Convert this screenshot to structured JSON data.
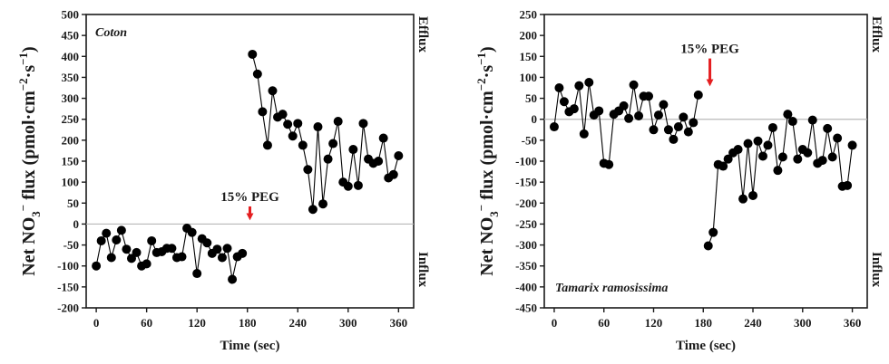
{
  "colors": {
    "series": "#000000",
    "zero_line": "#b8b8b8",
    "arrow": "#e41e20",
    "axis": "#1a1a1a"
  },
  "chart_data": [
    {
      "type": "line",
      "title": "Coton",
      "xlabel": "Time (sec)",
      "ylabel": "Net NO3− flux (pmol·cm−2·s−1)",
      "ylabel_parts": {
        "a": "Net NO",
        "sub": "3",
        "sup1": "−",
        "b": " flux  (pmol·cm",
        "sup2": "−2",
        "c": "·s",
        "sup3": "−1",
        "d": ")"
      },
      "side_top": "Efflux",
      "side_bottom": "Influx",
      "xlim": [
        -12,
        378
      ],
      "ylim": [
        -200,
        500
      ],
      "xticks": [
        0,
        60,
        120,
        180,
        240,
        300,
        360
      ],
      "yticks": [
        -200,
        -150,
        -100,
        -50,
        0,
        50,
        100,
        150,
        200,
        250,
        300,
        350,
        400,
        450,
        500
      ],
      "grid": false,
      "annotation": {
        "text": "15% PEG",
        "x": 183,
        "y": 55,
        "arrow_to_y": 0
      },
      "series": [
        {
          "x": [
            0,
            6,
            12,
            18,
            24,
            30,
            36,
            42,
            48,
            54,
            60,
            66,
            72,
            78,
            84,
            90,
            96,
            102,
            108,
            114,
            120,
            126,
            132,
            138,
            144,
            150,
            156,
            162,
            168,
            174,
            180,
            186,
            192,
            198,
            204,
            210,
            216,
            222,
            228,
            234,
            240,
            246,
            252,
            258,
            264,
            270,
            276,
            282,
            288,
            294,
            300,
            306,
            312,
            318,
            324,
            330,
            336,
            342,
            348,
            354,
            360
          ],
          "y": [
            -100,
            -40,
            -22,
            -80,
            -38,
            -15,
            -60,
            -82,
            -68,
            -100,
            -95,
            -40,
            -68,
            -66,
            -58,
            -58,
            -80,
            -78,
            -10,
            -20,
            -118,
            -35,
            -45,
            -70,
            -60,
            -80,
            -58,
            -132,
            -78,
            -70,
            null,
            405,
            358,
            268,
            188,
            318,
            255,
            262,
            238,
            210,
            240,
            188,
            130,
            35,
            232,
            48,
            155,
            192,
            245,
            100,
            90,
            178,
            92,
            240,
            155,
            145,
            150,
            205,
            110,
            118,
            163
          ]
        }
      ]
    },
    {
      "type": "line",
      "title": "Tamarix ramosissima",
      "xlabel": "Time (sec)",
      "ylabel": "Net NO3− flux (pmol·cm−2·s−1)",
      "ylabel_parts": {
        "a": "Net NO",
        "sub": "3",
        "sup1": "−",
        "b": " flux  (pmol·cm",
        "sup2": "−2",
        "c": "·s",
        "sup3": "−1",
        "d": ")"
      },
      "side_top": "Efflux",
      "side_bottom": "Influx",
      "xlim": [
        -12,
        378
      ],
      "ylim": [
        -450,
        250
      ],
      "xticks": [
        0,
        60,
        120,
        180,
        240,
        300,
        360
      ],
      "yticks": [
        -450,
        -400,
        -350,
        -300,
        -250,
        -200,
        -150,
        -100,
        -50,
        0,
        50,
        100,
        150,
        200,
        250
      ],
      "grid": false,
      "annotation": {
        "text": "15% PEG",
        "x": 188,
        "y": 158,
        "arrow_to_y": 70
      },
      "series": [
        {
          "x": [
            0,
            6,
            12,
            18,
            24,
            30,
            36,
            42,
            48,
            54,
            60,
            66,
            72,
            78,
            84,
            90,
            96,
            102,
            108,
            114,
            120,
            126,
            132,
            138,
            144,
            150,
            156,
            162,
            168,
            174,
            180,
            186,
            192,
            198,
            204,
            210,
            216,
            222,
            228,
            234,
            240,
            246,
            252,
            258,
            264,
            270,
            276,
            282,
            288,
            294,
            300,
            306,
            312,
            318,
            324,
            330,
            336,
            342,
            348,
            354,
            360
          ],
          "y": [
            -18,
            75,
            42,
            18,
            25,
            80,
            -35,
            88,
            10,
            20,
            -105,
            -108,
            12,
            20,
            32,
            2,
            82,
            8,
            55,
            55,
            -25,
            10,
            35,
            -25,
            -48,
            -18,
            5,
            -30,
            -8,
            58,
            null,
            -302,
            -270,
            -108,
            -112,
            -95,
            -80,
            -72,
            -190,
            -58,
            -182,
            -52,
            -88,
            -62,
            -20,
            -122,
            -90,
            12,
            -5,
            -95,
            -72,
            -80,
            -2,
            -105,
            -98,
            -22,
            -90,
            -45,
            -160,
            -158,
            -62
          ]
        }
      ]
    }
  ]
}
